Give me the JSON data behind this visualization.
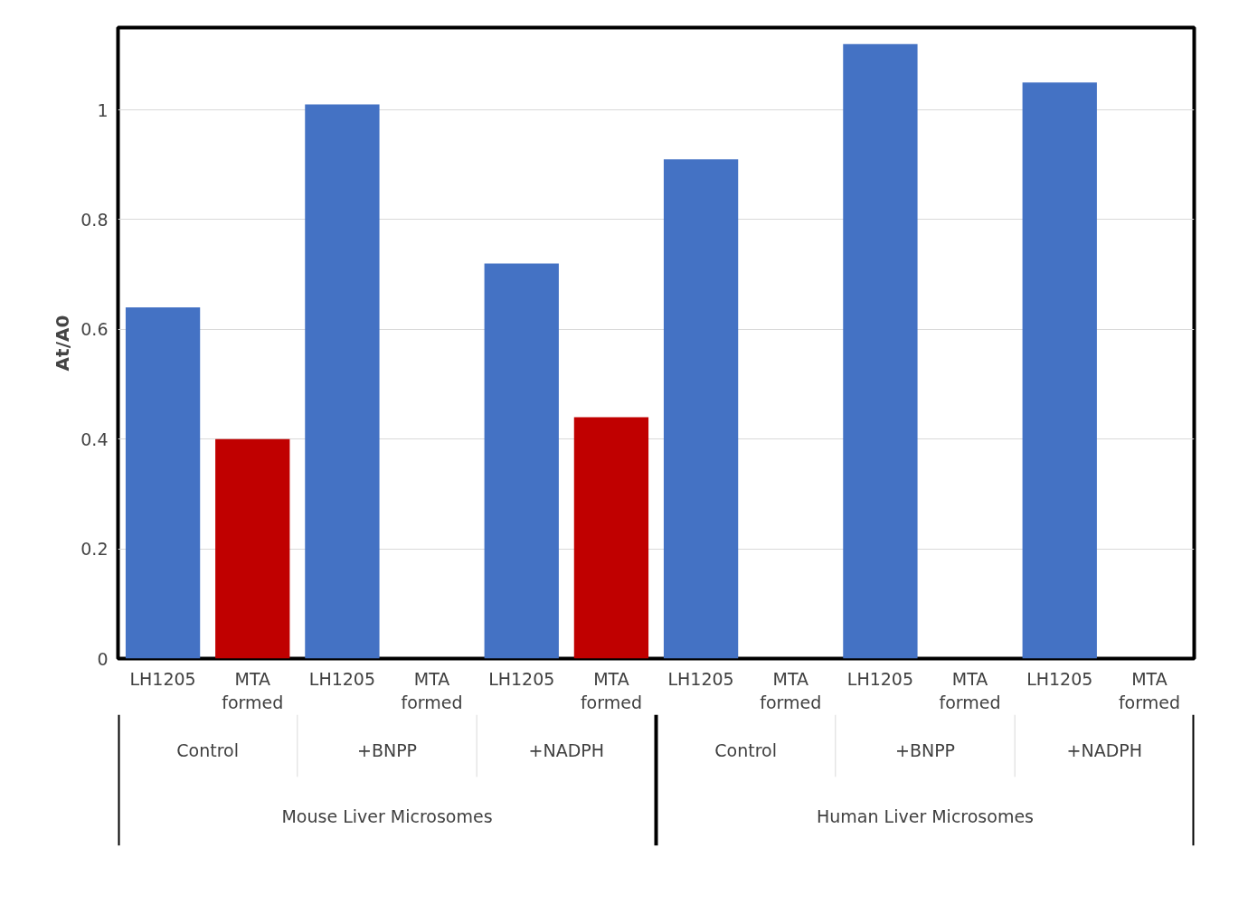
{
  "chart_data": {
    "type": "bar",
    "ylabel": "At/A0",
    "categories": [
      "LH1205",
      "MTA formed",
      "LH1205",
      "MTA formed",
      "LH1205",
      "MTA formed",
      "LH1205",
      "MTA formed",
      "LH1205",
      "MTA formed",
      "LH1205",
      "MTA formed"
    ],
    "values": [
      0.64,
      0.4,
      1.01,
      null,
      0.72,
      0.44,
      0.91,
      null,
      1.12,
      null,
      1.05,
      null
    ],
    "colors": [
      "#4472c4",
      "#c00000",
      "#4472c4",
      "#c00000",
      "#4472c4",
      "#c00000",
      "#4472c4",
      "#c00000",
      "#4472c4",
      "#c00000",
      "#4472c4",
      "#c00000"
    ],
    "ylim": [
      0,
      1.15
    ],
    "yticks": [
      0,
      0.2,
      0.4,
      0.6,
      0.8,
      1
    ],
    "grid": "y",
    "annotations": [
      "Control",
      "+BNPP",
      "+NADPH",
      "Control",
      "+BNPP",
      "+NADPH",
      "Mouse Liver Microsomes",
      "Human Liver Microsomes"
    ]
  }
}
